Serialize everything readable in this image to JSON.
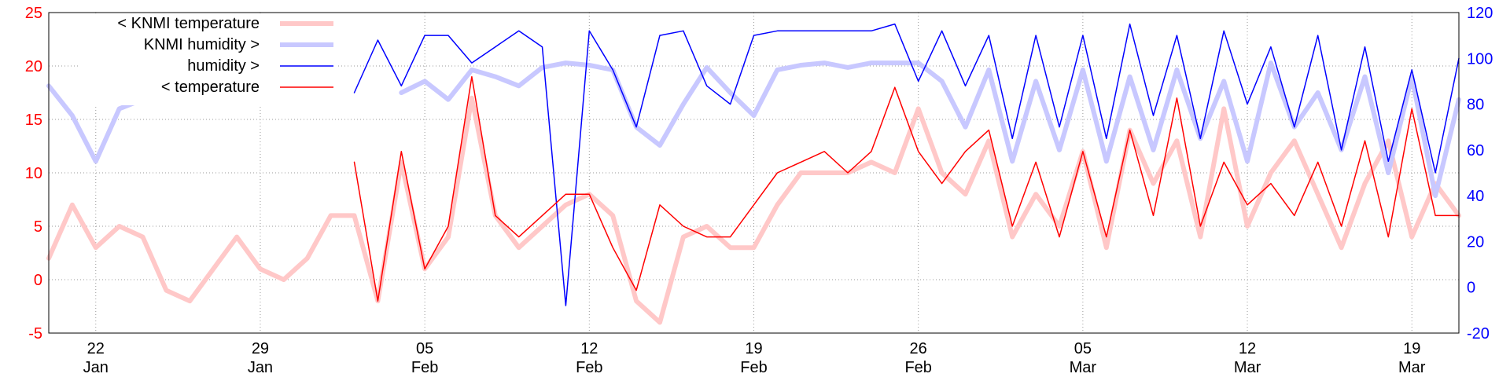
{
  "chart_data": {
    "type": "line",
    "title": "",
    "legend_position": "top-left",
    "grid": true,
    "y_left": {
      "min": -5,
      "max": 25,
      "ticks": [
        -5,
        0,
        5,
        10,
        15,
        20,
        25
      ],
      "tick_labels": [
        "-5",
        "0",
        "5",
        "10",
        "15",
        "20",
        "25"
      ],
      "color": "#ff0000"
    },
    "y_right": {
      "min": -20,
      "max": 120,
      "ticks": [
        -20,
        0,
        20,
        40,
        60,
        80,
        100,
        120
      ],
      "tick_labels": [
        "-20",
        "0",
        "20",
        "40",
        "60",
        "80",
        "100",
        "120"
      ],
      "color": "#0000ff"
    },
    "x_axis": {
      "range": [
        "Jan 20",
        "Mar 21"
      ],
      "ticks": [
        {
          "date": "Jan 22",
          "day": "22",
          "month": "Jan"
        },
        {
          "date": "Jan 29",
          "day": "29",
          "month": "Jan"
        },
        {
          "date": "Feb 05",
          "day": "05",
          "month": "Feb"
        },
        {
          "date": "Feb 12",
          "day": "12",
          "month": "Feb"
        },
        {
          "date": "Feb 19",
          "day": "19",
          "month": "Feb"
        },
        {
          "date": "Feb 26",
          "day": "26",
          "month": "Feb"
        },
        {
          "date": "Mar 05",
          "day": "05",
          "month": "Mar"
        },
        {
          "date": "Mar 12",
          "day": "12",
          "month": "Mar"
        },
        {
          "date": "Mar 19",
          "day": "19",
          "month": "Mar"
        }
      ]
    },
    "legend": [
      {
        "label": "< KNMI temperature",
        "color": "#ffc8c8",
        "width": 6
      },
      {
        "label": "KNMI humidity >",
        "color": "#c8c8ff",
        "width": 6
      },
      {
        "label": "humidity >",
        "color": "#0000ff",
        "width": 1.5
      },
      {
        "label": "< temperature",
        "color": "#ff0000",
        "width": 1.5
      }
    ],
    "series": [
      {
        "name": "< KNMI temperature",
        "axis": "left",
        "color": "#ffc8c8",
        "x": [
          "Jan 20",
          "Jan 21",
          "Jan 22",
          "Jan 23",
          "Jan 24",
          "Jan 25",
          "Jan 26",
          "Jan 27",
          "Jan 28",
          "Jan 29",
          "Jan 30",
          "Jan 31",
          "Feb 01",
          "Feb 02",
          "Feb 03",
          "Feb 04",
          "Feb 05",
          "Feb 06",
          "Feb 07",
          "Feb 08",
          "Feb 09",
          "Feb 10",
          "Feb 11",
          "Feb 12",
          "Feb 13",
          "Feb 14",
          "Feb 15",
          "Feb 16",
          "Feb 17",
          "Feb 18",
          "Feb 19",
          "Feb 20",
          "Feb 21",
          "Feb 22",
          "Feb 23",
          "Feb 24",
          "Feb 25",
          "Feb 26",
          "Feb 27",
          "Feb 28",
          "Mar 01",
          "Mar 02",
          "Mar 03",
          "Mar 04",
          "Mar 05",
          "Mar 06",
          "Mar 07",
          "Mar 08",
          "Mar 09",
          "Mar 10",
          "Mar 11",
          "Mar 12",
          "Mar 13",
          "Mar 14",
          "Mar 15",
          "Mar 16",
          "Mar 17",
          "Mar 18",
          "Mar 19",
          "Mar 20",
          "Mar 21"
        ],
        "y": [
          2,
          7,
          3,
          5,
          4,
          -1,
          -2,
          1,
          4,
          1,
          0,
          2,
          6,
          6,
          -2,
          11,
          1,
          4,
          17,
          6,
          3,
          5,
          7,
          8,
          6,
          -2,
          -4,
          4,
          5,
          3,
          3,
          7,
          10,
          10,
          10,
          11,
          10,
          16,
          10,
          8,
          13,
          4,
          8,
          5,
          12,
          3,
          14,
          9,
          13,
          4,
          16,
          5,
          10,
          13,
          8,
          3,
          9,
          13,
          4,
          9,
          6
        ]
      },
      {
        "name": "KNMI humidity >",
        "axis": "right",
        "color": "#c8c8ff",
        "x": [
          "Jan 20",
          "Jan 21",
          "Jan 22",
          "Jan 23",
          "Jan 24",
          "Jan 25",
          "Jan 26",
          "Jan 27",
          "Jan 28",
          "Jan 29",
          "Jan 30",
          "Jan 31",
          "Feb 01",
          "Feb 02",
          "Feb 03",
          "Feb 04",
          "Feb 05",
          "Feb 06",
          "Feb 07",
          "Feb 08",
          "Feb 09",
          "Feb 10",
          "Feb 11",
          "Feb 12",
          "Feb 13",
          "Feb 14",
          "Feb 15",
          "Feb 16",
          "Feb 17",
          "Feb 18",
          "Feb 19",
          "Feb 20",
          "Feb 21",
          "Feb 22",
          "Feb 23",
          "Feb 24",
          "Feb 25",
          "Feb 26",
          "Feb 27",
          "Feb 28",
          "Mar 01",
          "Mar 02",
          "Mar 03",
          "Mar 04",
          "Mar 05",
          "Mar 06",
          "Mar 07",
          "Mar 08",
          "Mar 09",
          "Mar 10",
          "Mar 11",
          "Mar 12",
          "Mar 13",
          "Mar 14",
          "Mar 15",
          "Mar 16",
          "Mar 17",
          "Mar 18",
          "Mar 19",
          "Mar 20",
          "Mar 21"
        ],
        "y": [
          88,
          75,
          55,
          78,
          82,
          null,
          null,
          null,
          null,
          null,
          null,
          null,
          null,
          null,
          null,
          85,
          90,
          82,
          95,
          92,
          88,
          96,
          98,
          97,
          95,
          70,
          62,
          80,
          96,
          85,
          75,
          95,
          97,
          98,
          96,
          98,
          98,
          98,
          90,
          70,
          95,
          55,
          90,
          60,
          95,
          55,
          92,
          60,
          95,
          65,
          90,
          55,
          98,
          70,
          85,
          60,
          92,
          50,
          92,
          40,
          82
        ]
      },
      {
        "name": "humidity >",
        "axis": "right",
        "color": "#0000ff",
        "x": [
          "Feb 02",
          "Feb 03",
          "Feb 04",
          "Feb 05",
          "Feb 06",
          "Feb 07",
          "Feb 08",
          "Feb 09",
          "Feb 10",
          "Feb 11",
          "Feb 12",
          "Feb 13",
          "Feb 14",
          "Feb 15",
          "Feb 16",
          "Feb 17",
          "Feb 18",
          "Feb 19",
          "Feb 20",
          "Feb 21",
          "Feb 22",
          "Feb 23",
          "Feb 24",
          "Feb 25",
          "Feb 26",
          "Feb 27",
          "Feb 28",
          "Mar 01",
          "Mar 02",
          "Mar 03",
          "Mar 04",
          "Mar 05",
          "Mar 06",
          "Mar 07",
          "Mar 08",
          "Mar 09",
          "Mar 10",
          "Mar 11",
          "Mar 12",
          "Mar 13",
          "Mar 14",
          "Mar 15",
          "Mar 16",
          "Mar 17",
          "Mar 18",
          "Mar 19",
          "Mar 20",
          "Mar 21"
        ],
        "y": [
          85,
          108,
          88,
          110,
          110,
          98,
          105,
          112,
          105,
          -8,
          112,
          95,
          70,
          110,
          112,
          88,
          80,
          110,
          112,
          112,
          112,
          112,
          112,
          115,
          90,
          112,
          88,
          110,
          65,
          110,
          70,
          110,
          65,
          115,
          75,
          110,
          65,
          112,
          80,
          105,
          70,
          110,
          60,
          105,
          55,
          95,
          50,
          100
        ]
      },
      {
        "name": "< temperature",
        "axis": "left",
        "color": "#ff0000",
        "x": [
          "Feb 02",
          "Feb 03",
          "Feb 04",
          "Feb 05",
          "Feb 06",
          "Feb 07",
          "Feb 08",
          "Feb 09",
          "Feb 10",
          "Feb 11",
          "Feb 12",
          "Feb 13",
          "Feb 14",
          "Feb 15",
          "Feb 16",
          "Feb 17",
          "Feb 18",
          "Feb 19",
          "Feb 20",
          "Feb 21",
          "Feb 22",
          "Feb 23",
          "Feb 24",
          "Feb 25",
          "Feb 26",
          "Feb 27",
          "Feb 28",
          "Mar 01",
          "Mar 02",
          "Mar 03",
          "Mar 04",
          "Mar 05",
          "Mar 06",
          "Mar 07",
          "Mar 08",
          "Mar 09",
          "Mar 10",
          "Mar 11",
          "Mar 12",
          "Mar 13",
          "Mar 14",
          "Mar 15",
          "Mar 16",
          "Mar 17",
          "Mar 18",
          "Mar 19",
          "Mar 20",
          "Mar 21"
        ],
        "y": [
          11,
          -2,
          12,
          1,
          5,
          19,
          6,
          4,
          6,
          8,
          8,
          3,
          -1,
          7,
          5,
          4,
          4,
          7,
          10,
          11,
          12,
          10,
          12,
          18,
          12,
          9,
          12,
          14,
          5,
          11,
          4,
          12,
          4,
          14,
          6,
          17,
          5,
          11,
          7,
          9,
          6,
          11,
          5,
          13,
          4,
          16,
          6,
          6
        ]
      }
    ]
  }
}
